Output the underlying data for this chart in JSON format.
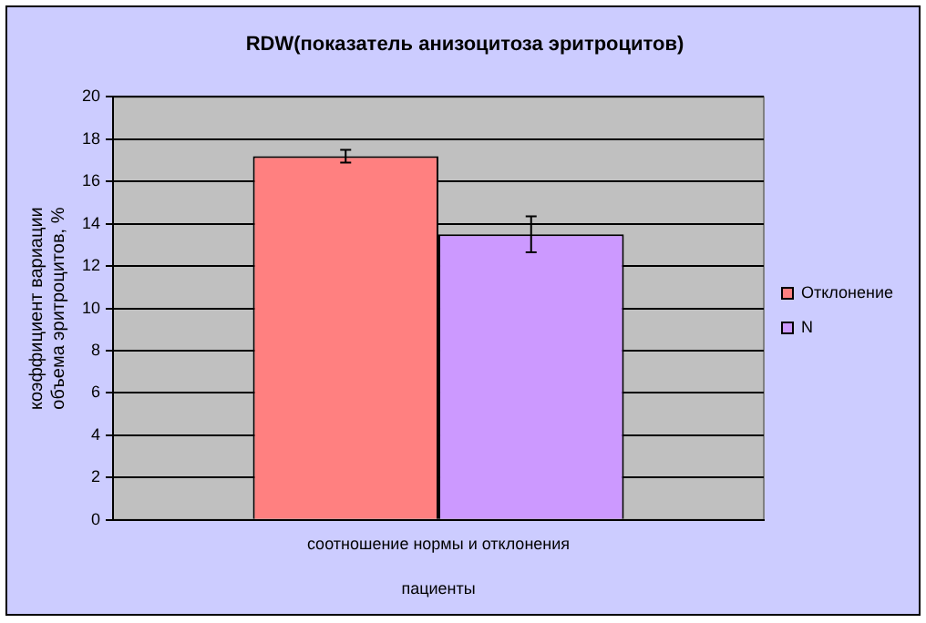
{
  "chart_data": {
    "type": "bar",
    "title": "RDW(показатель анизоцитоза эритроцитов)",
    "xlabel": "пациенты",
    "ylabel": "коэффициент вариации объема эритроцитов, %",
    "categories": [
      "соотношение нормы и отклонения"
    ],
    "series": [
      {
        "name": "Отклонение",
        "color": "#ff8080",
        "values": [
          17.2
        ],
        "errors": [
          0.3
        ]
      },
      {
        "name": "N",
        "color": "#cc99ff",
        "values": [
          13.5
        ],
        "errors": [
          0.85
        ]
      }
    ],
    "ylim": [
      0,
      20
    ],
    "yticks": [
      0,
      2,
      4,
      6,
      8,
      10,
      12,
      14,
      16,
      18,
      20
    ],
    "grid": "y",
    "legend": "right"
  }
}
